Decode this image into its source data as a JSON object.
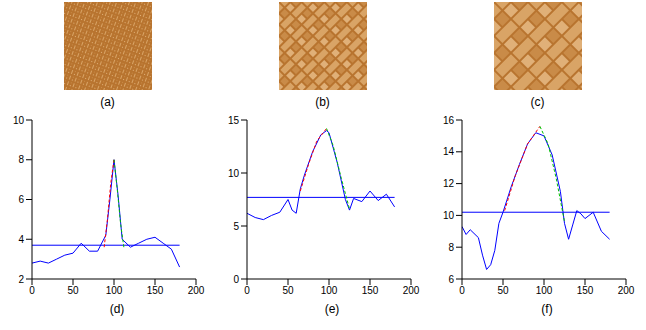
{
  "images": [
    {
      "label": "(a)"
    },
    {
      "label": "(b)"
    },
    {
      "label": "(c)"
    }
  ],
  "chart_data": [
    {
      "type": "line",
      "label": "(d)",
      "xlim": [
        0,
        200
      ],
      "xticks": [
        0,
        50,
        100,
        150,
        200
      ],
      "ylim": [
        2,
        10
      ],
      "yticks": [
        2,
        4,
        6,
        8,
        10
      ],
      "series": [
        {
          "color": "#0000ff",
          "line_style": "solid",
          "x": [
            0,
            10,
            20,
            30,
            40,
            50,
            60,
            70,
            80,
            90,
            95,
            100,
            105,
            110,
            120,
            130,
            140,
            150,
            160,
            170,
            180
          ],
          "values": [
            2.8,
            2.9,
            2.8,
            3.0,
            3.2,
            3.3,
            3.8,
            3.4,
            3.4,
            4.2,
            6.0,
            8.0,
            6.2,
            4.0,
            3.6,
            3.8,
            4.0,
            4.1,
            3.8,
            3.5,
            2.6
          ]
        },
        {
          "color": "#0000ff",
          "line_style": "solid",
          "x": [
            0,
            180
          ],
          "values": [
            3.7,
            3.7
          ]
        },
        {
          "color": "#ff0000",
          "line_style": "dashed",
          "x": [
            88,
            92,
            96,
            100
          ],
          "values": [
            3.6,
            5.0,
            6.8,
            8.0
          ]
        },
        {
          "color": "#00c000",
          "line_style": "dashed",
          "x": [
            100,
            104,
            108,
            112
          ],
          "values": [
            8.0,
            6.5,
            4.8,
            3.6
          ]
        }
      ]
    },
    {
      "type": "line",
      "label": "(e)",
      "xlim": [
        0,
        200
      ],
      "xticks": [
        0,
        50,
        100,
        150,
        200
      ],
      "ylim": [
        0,
        15
      ],
      "yticks": [
        0,
        5,
        10,
        15
      ],
      "series": [
        {
          "color": "#0000ff",
          "line_style": "solid",
          "x": [
            0,
            10,
            20,
            30,
            40,
            50,
            55,
            60,
            65,
            70,
            80,
            90,
            97,
            100,
            110,
            120,
            125,
            130,
            140,
            150,
            160,
            170,
            180
          ],
          "values": [
            6.2,
            5.8,
            5.6,
            6.0,
            6.3,
            7.5,
            6.5,
            6.2,
            8.5,
            9.8,
            12.0,
            13.6,
            14.0,
            13.8,
            11.0,
            7.5,
            6.5,
            7.6,
            7.3,
            8.3,
            7.4,
            8.0,
            6.8
          ]
        },
        {
          "color": "#0000ff",
          "line_style": "solid",
          "x": [
            0,
            180
          ],
          "values": [
            7.7,
            7.7
          ]
        },
        {
          "color": "#ff0000",
          "line_style": "dashed",
          "x": [
            65,
            75,
            85,
            97
          ],
          "values": [
            8.3,
            10.8,
            13.0,
            14.2
          ]
        },
        {
          "color": "#00c000",
          "line_style": "dashed",
          "x": [
            97,
            105,
            115,
            125
          ],
          "values": [
            14.2,
            12.6,
            9.5,
            6.6
          ]
        }
      ]
    },
    {
      "type": "line",
      "label": "(f)",
      "xlim": [
        0,
        200
      ],
      "xticks": [
        0,
        50,
        100,
        150,
        200
      ],
      "ylim": [
        6,
        16
      ],
      "yticks": [
        6,
        8,
        10,
        12,
        14,
        16
      ],
      "series": [
        {
          "color": "#0000ff",
          "line_style": "solid",
          "x": [
            0,
            5,
            10,
            20,
            25,
            30,
            35,
            40,
            45,
            50,
            60,
            70,
            80,
            90,
            100,
            110,
            120,
            125,
            130,
            135,
            140,
            145,
            150,
            160,
            170,
            180
          ],
          "values": [
            9.3,
            8.8,
            9.1,
            8.6,
            7.5,
            6.6,
            6.9,
            7.8,
            9.5,
            10.2,
            11.8,
            13.2,
            14.5,
            15.2,
            15.0,
            13.8,
            11.5,
            9.5,
            8.5,
            9.4,
            10.3,
            10.1,
            9.8,
            10.2,
            9.0,
            8.5
          ]
        },
        {
          "color": "#0000ff",
          "line_style": "solid",
          "x": [
            0,
            180
          ],
          "values": [
            10.2,
            10.2
          ]
        },
        {
          "color": "#ff0000",
          "line_style": "dashed",
          "x": [
            52,
            65,
            80,
            95
          ],
          "values": [
            10.3,
            12.5,
            14.5,
            15.6
          ]
        },
        {
          "color": "#00c000",
          "line_style": "dashed",
          "x": [
            95,
            105,
            115,
            125
          ],
          "values": [
            15.6,
            14.5,
            12.3,
            9.6
          ]
        }
      ]
    }
  ]
}
